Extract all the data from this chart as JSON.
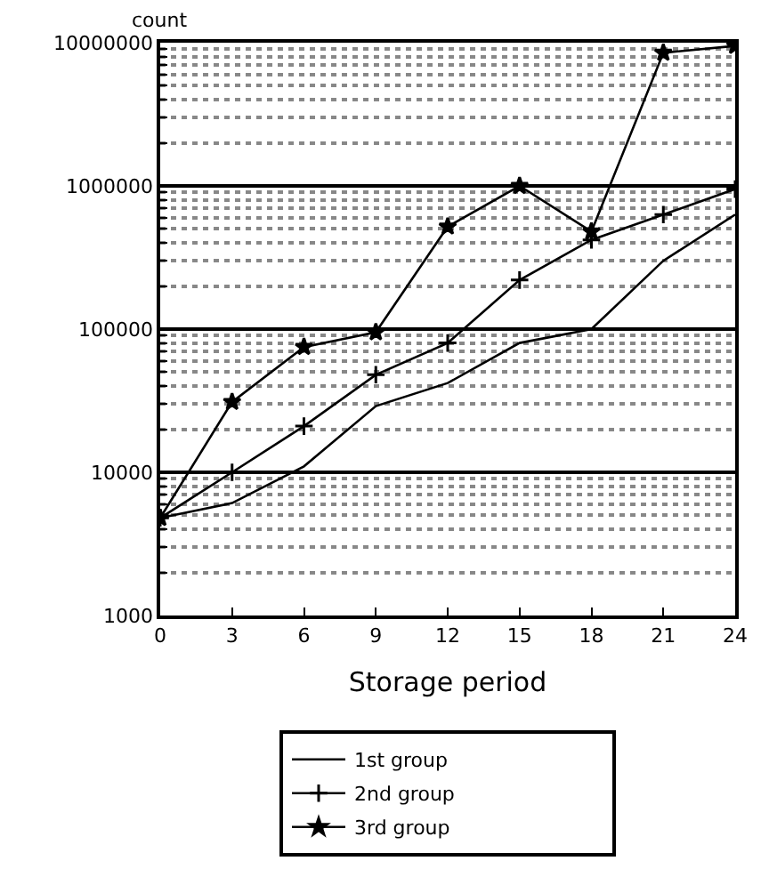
{
  "chart_data": {
    "type": "line",
    "ylabel": "count",
    "xlabel": "Storage period",
    "x": [
      0,
      3,
      6,
      9,
      12,
      15,
      18,
      21,
      24
    ],
    "series": [
      {
        "name": "1st group",
        "color": "#000000",
        "marker": "none",
        "values": [
          4800,
          6100,
          11000,
          29000,
          42000,
          80000,
          100000,
          300000,
          630000
        ]
      },
      {
        "name": "2nd group",
        "color": "#000000",
        "marker": "cross",
        "values": [
          4800,
          10000,
          21000,
          48000,
          80000,
          220000,
          420000,
          630000,
          950000
        ]
      },
      {
        "name": "3rd group",
        "color": "#000000",
        "marker": "star",
        "values": [
          4800,
          31000,
          75000,
          95000,
          520000,
          1000000,
          480000,
          8500000,
          9500000
        ]
      }
    ],
    "log": "y",
    "xlim": [
      0,
      24
    ],
    "xticks": [
      0,
      3,
      6,
      9,
      12,
      15,
      18,
      21,
      24
    ],
    "ylim": [
      1000,
      10000000
    ],
    "yticks": [
      1000,
      10000,
      100000,
      1000000,
      10000000
    ],
    "grid": "y",
    "legend": "bottom",
    "line_style": "solid"
  }
}
